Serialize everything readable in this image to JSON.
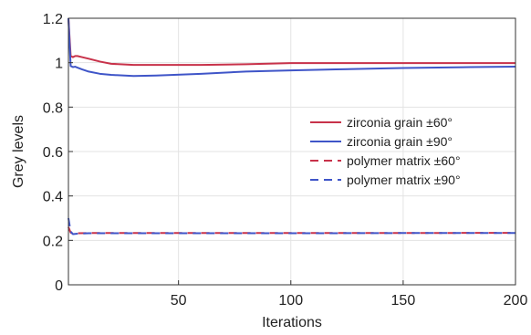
{
  "chart_data": {
    "type": "line",
    "title": "",
    "xlabel": "Iterations",
    "ylabel": "Grey levels",
    "xlim": [
      1,
      200
    ],
    "ylim": [
      0,
      1.2
    ],
    "xticks": [
      50,
      100,
      150,
      200
    ],
    "xtick_labels": [
      "50",
      "100",
      "150",
      "200"
    ],
    "yticks": [
      0,
      0.2,
      0.4,
      0.6,
      0.8,
      1,
      1.2
    ],
    "ytick_labels": [
      "0",
      "0.2",
      "0.4",
      "0.6",
      "0.8",
      "1",
      "1.2"
    ],
    "grid": true,
    "legend_position": "right",
    "series": [
      {
        "name": "zirconia grain ±60°",
        "color": "#c8324a",
        "dash": "solid",
        "x": [
          1,
          2,
          3,
          4,
          5,
          7,
          10,
          15,
          20,
          30,
          40,
          60,
          80,
          100,
          120,
          150,
          180,
          200
        ],
        "y": [
          1.2,
          1.03,
          1.025,
          1.03,
          1.03,
          1.025,
          1.018,
          1.005,
          0.995,
          0.99,
          0.99,
          0.99,
          0.993,
          0.998,
          0.998,
          0.998,
          0.998,
          0.998
        ]
      },
      {
        "name": "zirconia grain ±90°",
        "color": "#3f55c8",
        "dash": "solid",
        "x": [
          1,
          2,
          3,
          4,
          5,
          7,
          10,
          15,
          20,
          30,
          40,
          60,
          80,
          100,
          120,
          150,
          180,
          200
        ],
        "y": [
          1.2,
          0.985,
          0.98,
          0.982,
          0.978,
          0.97,
          0.96,
          0.95,
          0.945,
          0.94,
          0.942,
          0.95,
          0.96,
          0.965,
          0.97,
          0.976,
          0.98,
          0.982
        ]
      },
      {
        "name": "polymer matrix ±60°",
        "color": "#c8324a",
        "dash": "dashed",
        "x": [
          1,
          2,
          3,
          5,
          10,
          20,
          50,
          100,
          150,
          200
        ],
        "y": [
          0.26,
          0.235,
          0.23,
          0.232,
          0.233,
          0.233,
          0.233,
          0.233,
          0.233,
          0.234
        ]
      },
      {
        "name": "polymer matrix ±90°",
        "color": "#3f55c8",
        "dash": "dashed",
        "x": [
          1,
          2,
          3,
          5,
          10,
          20,
          50,
          100,
          150,
          200
        ],
        "y": [
          0.3,
          0.24,
          0.228,
          0.23,
          0.232,
          0.232,
          0.232,
          0.232,
          0.233,
          0.233
        ]
      }
    ]
  }
}
